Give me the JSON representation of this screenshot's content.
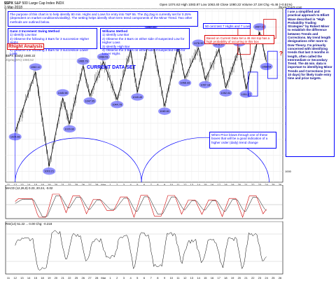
{
  "header": {
    "symbol": "$SPX",
    "name": "S&P 500 Large Cap Index",
    "exchange": "INDX",
    "date": "2-Mar-2018",
    "ohlc": "Open 1074.62  High 1083.87  Low 1063.40  Close 1080.22  Volume 27.1M  Chg +5.46 (+0.51%)",
    "brand": "StockCharts.com",
    "legend_price": "$SPX (Daily) 1080.22",
    "legend_zz": "ZigZag(5%) 1066.52"
  },
  "texts": {
    "purpose": "The purpose of this chart is to help identify 80 min. Highs and Lows for entry into T&P 55. The Zig Zag is currently set for 0.25% (dependent on market conditions/volatility). The setting helps identify short term trend components of the Minor Trend. Two other methods are outlined below.",
    "gann_title": "Gann 3 Increment Swing Method",
    "gann_lines": [
      "1) Identify Low Bar",
      "2) Observe the following 3 Bars for 3 successive Higher Highs",
      "3) Identify High Bar",
      "4) Observe the following 3 Bars for 3 successive Lower Lows"
    ],
    "williams_title": "Williams Method",
    "williams_lines": [
      "1) Identify Low Bar",
      "2) Observe the 3 Bars on either side of suspected Low for Higher Lows",
      "3) Identify High Bar",
      "4) Observe the 3 Bars on either side of suspected High for Lower Highs"
    ],
    "fifty": "50 cent test 7 Highs and 7 Lows",
    "based": "Based on Current Data Set a 46 min top has a high probability of occurring in this box",
    "analysis": "Rhight Analysis",
    "current": "CURRENT DATA SET",
    "when": "When Price blows through one of these boxes that will be a good indication of a higher order (daily) trend change",
    "side": "I use a simplified and practical approach to Elliott Wave described in \"High Probability Trading Strategies\" by Robert Miner to establish the difference between Trends and Corrections. My trend length designations refer more to Dow Theory. I'm primarily concerned with identifying trends that last 3 months in length, often called the Intermediate or Secondary Trend. The 46 min. data is important to identifying Minor Trends and Corrections (3 to 10 days) for likely trade entry time and price targets.",
    "q": "?"
  },
  "macd": {
    "label": "MACD (12,26,9) 0.23, 20.24, -0.02"
  },
  "rsi": {
    "label": "RSI(14) 51.22 ... 0.00 Chg: -0.218"
  },
  "colors": {
    "accent": "#0000ff",
    "zigzag": "#000000",
    "price": "#404040",
    "ellipse": "#8080ff",
    "redbox": "#d00000",
    "macd": "#d00000",
    "signal": "#000000"
  },
  "chart_data": {
    "type": "line",
    "xlabel": "",
    "ylabel": "",
    "x_ticks": [
      "11",
      "12",
      "13",
      "14",
      "15",
      "18",
      "19",
      "20",
      "21",
      "22",
      "25",
      "26",
      "27",
      "28",
      "Mar",
      "1",
      "2",
      "3",
      "4",
      "5",
      "6",
      "7",
      "8",
      "9",
      "10",
      "11",
      "12",
      "13",
      "14",
      "15",
      "16",
      "17",
      "18",
      "19",
      "20",
      "21",
      "22",
      "23",
      "24",
      "25",
      "26"
    ],
    "y_ticks": [
      1000,
      1010,
      1020,
      1030,
      1040,
      1050,
      1060,
      1070,
      1080,
      1090,
      1100
    ],
    "ylim": [
      995,
      1100
    ],
    "zigzag_points": [
      {
        "label": "1024.66",
        "i": 1,
        "y": 1024.66
      },
      {
        "label": "1062.12",
        "i": 4,
        "y": 1062.12
      },
      {
        "label": "1003.21",
        "i": 6,
        "y": 1003.21
      },
      {
        "label": "1045.98",
        "i": 8,
        "y": 1045.98
      },
      {
        "label": "1029.60",
        "i": 9,
        "y": 1029.6
      },
      {
        "label": "1065.79",
        "i": 11,
        "y": 1065.79
      },
      {
        "label": "1047.05",
        "i": 12,
        "y": 1047.05
      },
      {
        "label": "1068.51",
        "i": 14,
        "y": 1068.51
      },
      {
        "label": "1044.78",
        "i": 16,
        "y": 1044.78
      },
      {
        "label": "1075.79",
        "i": 18,
        "y": 1075.79
      },
      {
        "label": "1049.49",
        "i": 19,
        "y": 1049.49
      },
      {
        "label": "1087.32",
        "i": 21,
        "y": 1087.32
      },
      {
        "label": "1040.61",
        "i": 23,
        "y": 1040.61
      },
      {
        "label": "1077.80",
        "i": 25,
        "y": 1077.8
      },
      {
        "label": "1058.33",
        "i": 26,
        "y": 1058.33
      },
      {
        "label": "1076.99",
        "i": 28,
        "y": 1076.99
      },
      {
        "label": "1057.18",
        "i": 29,
        "y": 1057.18
      },
      {
        "label": "1076.27",
        "i": 31,
        "y": 1076.27
      },
      {
        "label": "1052.04",
        "i": 32,
        "y": 1052.04
      },
      {
        "label": "1077.16",
        "i": 34,
        "y": 1077.16
      },
      {
        "label": "1051.27",
        "i": 35,
        "y": 1051.27
      },
      {
        "label": "1087.19",
        "i": 37,
        "y": 1087.19
      },
      {
        "label": "1068.54",
        "i": 38,
        "y": 1068.54
      }
    ]
  }
}
